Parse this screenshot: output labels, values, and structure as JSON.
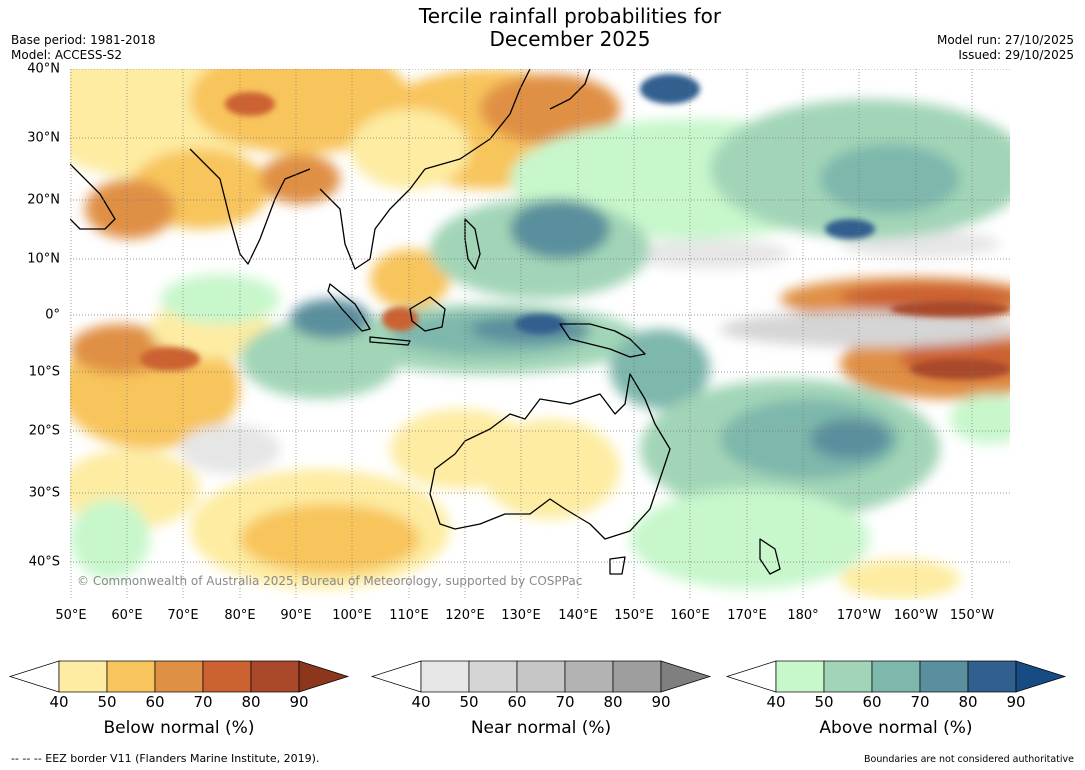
{
  "title_line1": "Tercile rainfall probabilities for",
  "title_line2": "December 2025",
  "base_period": "Base period: 1981-2018",
  "model": "Model: ACCESS-S2",
  "model_run": "Model run: 27/10/2025",
  "issued": "Issued: 29/10/2025",
  "lat_labels": [
    "40°N",
    "30°N",
    "20°N",
    "10°N",
    "0°",
    "10°S",
    "20°S",
    "30°S",
    "40°S"
  ],
  "lon_labels": [
    "50°E",
    "60°E",
    "70°E",
    "80°E",
    "90°E",
    "100°E",
    "110°E",
    "120°E",
    "130°E",
    "140°E",
    "150°E",
    "160°E",
    "170°E",
    "180°",
    "170°W",
    "160°W",
    "150°W"
  ],
  "copyright": "© Commonwealth of Australia 2025, Bureau of Meteorology, supported by COSPPac",
  "colorbars": [
    {
      "label": "Below normal (%)",
      "ticks": [
        "40",
        "50",
        "60",
        "70",
        "80",
        "90"
      ],
      "colors": [
        "#ffffff",
        "#fdeca2",
        "#f8c45c",
        "#e09044",
        "#cc6232",
        "#a9482a",
        "#8b361d"
      ]
    },
    {
      "label": "Near normal (%)",
      "ticks": [
        "40",
        "50",
        "60",
        "70",
        "80",
        "90"
      ],
      "colors": [
        "#ffffff",
        "#e6e6e6",
        "#d5d5d5",
        "#c6c6c6",
        "#b3b3b3",
        "#9e9e9e",
        "#7f7f7f"
      ]
    },
    {
      "label": "Above normal (%)",
      "ticks": [
        "40",
        "50",
        "60",
        "70",
        "80",
        "90"
      ],
      "colors": [
        "#ffffff",
        "#c8f7cc",
        "#a2d5b7",
        "#7eb7ac",
        "#5a8f9d",
        "#315f8e",
        "#174b83"
      ]
    }
  ],
  "footer_left": "--  --  -- EEZ border V11 (Flanders Marine Institute, 2019).",
  "footer_right": "Boundaries are not considered authoritative"
}
